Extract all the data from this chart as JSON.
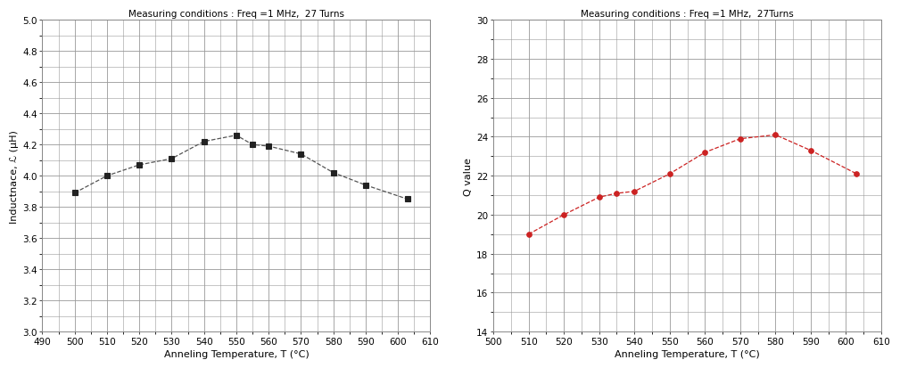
{
  "chart1": {
    "title": "Measuring conditions : Freq =1 MHz,  27 Turns",
    "xlabel": "Anneling Temperature, T (°C)",
    "ylabel": "Inductnace, ℒ (μH)",
    "xlim": [
      490,
      610
    ],
    "ylim": [
      3.0,
      5.0
    ],
    "xticks": [
      490,
      500,
      510,
      520,
      530,
      540,
      550,
      560,
      570,
      580,
      590,
      600,
      610
    ],
    "yticks": [
      3.0,
      3.2,
      3.4,
      3.6,
      3.8,
      4.0,
      4.2,
      4.4,
      4.6,
      4.8,
      5.0
    ],
    "x": [
      500,
      510,
      520,
      530,
      540,
      550,
      555,
      560,
      570,
      580,
      590,
      603
    ],
    "y": [
      3.89,
      4.0,
      4.07,
      4.11,
      4.22,
      4.26,
      4.2,
      4.19,
      4.14,
      4.02,
      3.94,
      3.85
    ],
    "line_color": "#555555",
    "marker": "s",
    "marker_color": "#222222",
    "marker_size": 4,
    "line_style": "--"
  },
  "chart2": {
    "title": "Measuring conditions : Freq =1 MHz,  27Turns",
    "xlabel": "Anneling Temperature, T (°C)",
    "ylabel": "Q value",
    "xlim": [
      500,
      610
    ],
    "ylim": [
      14,
      30
    ],
    "xticks": [
      500,
      510,
      520,
      530,
      540,
      550,
      560,
      570,
      580,
      590,
      600,
      610
    ],
    "yticks": [
      14,
      16,
      18,
      20,
      22,
      24,
      26,
      28,
      30
    ],
    "x": [
      510,
      520,
      530,
      535,
      540,
      550,
      560,
      570,
      580,
      590,
      603
    ],
    "y": [
      19.0,
      20.0,
      20.9,
      21.1,
      21.2,
      22.1,
      23.2,
      23.9,
      24.1,
      23.3,
      22.1
    ],
    "line_color": "#cc2222",
    "marker": "o",
    "marker_color": "#cc2222",
    "marker_size": 4,
    "line_style": "--"
  },
  "fig_width": 10.09,
  "fig_height": 4.14,
  "background_color": "#ffffff",
  "grid_color": "#999999",
  "title_fontsize": 7.5,
  "label_fontsize": 8,
  "tick_fontsize": 7.5
}
